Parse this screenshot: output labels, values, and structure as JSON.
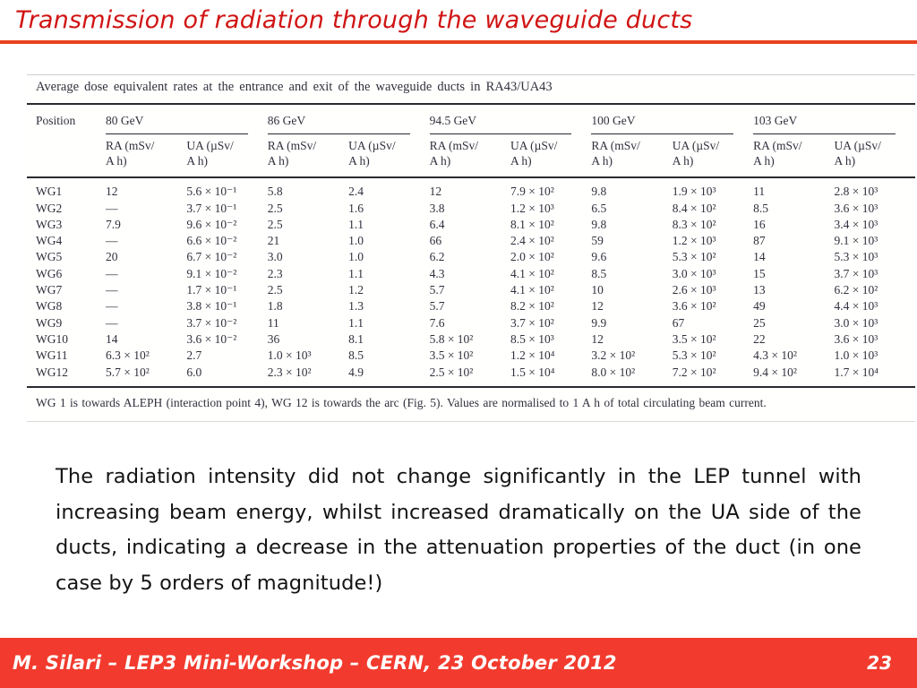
{
  "slide": {
    "title": "Transmission of radiation through the waveguide ducts",
    "body_paragraph": "The radiation intensity did not change significantly in the LEP tunnel with increasing beam energy, whilst increased dramatically on the UA side of the ducts, indicating a decrease in the attenuation properties of the duct (in one case by 5 orders of magnitude!)",
    "footer": {
      "credit": "M. Silari – LEP3 Mini-Workshop – CERN, 23 October 2012",
      "page_number": "23"
    },
    "colors": {
      "title_red": "#d11414",
      "rule_orange": "#e8421f",
      "footer_red": "#f23b2e",
      "paper_text": "#30303c"
    }
  },
  "table": {
    "caption": "Average dose equivalent rates at the entrance and exit of the waveguide ducts in RA43/UA43",
    "position_header": "Position",
    "energy_groups": [
      "80 GeV",
      "86 GeV",
      "94.5 GeV",
      "100 GeV",
      "103 GeV"
    ],
    "ra_subheader": "RA (mSv/\nA h)",
    "ua_subheader": "UA (µSv/\nA h)",
    "rows": [
      {
        "position": "WG1",
        "values": [
          "12",
          "5.6 × 10⁻¹",
          "5.8",
          "2.4",
          "12",
          "7.9 × 10²",
          "9.8",
          "1.9 × 10³",
          "11",
          "2.8 × 10³"
        ]
      },
      {
        "position": "WG2",
        "values": [
          "—",
          "3.7 × 10⁻¹",
          "2.5",
          "1.6",
          "3.8",
          "1.2 × 10³",
          "6.5",
          "8.4 × 10²",
          "8.5",
          "3.6 × 10³"
        ]
      },
      {
        "position": "WG3",
        "values": [
          "7.9",
          "9.6 × 10⁻²",
          "2.5",
          "1.1",
          "6.4",
          "8.1 × 10²",
          "9.8",
          "8.3 × 10²",
          "16",
          "3.4 × 10³"
        ]
      },
      {
        "position": "WG4",
        "values": [
          "—",
          "6.6 × 10⁻²",
          "21",
          "1.0",
          "66",
          "2.4 × 10²",
          "59",
          "1.2 × 10³",
          "87",
          "9.1 × 10³"
        ]
      },
      {
        "position": "WG5",
        "values": [
          "20",
          "6.7 × 10⁻²",
          "3.0",
          "1.0",
          "6.2",
          "2.0 × 10²",
          "9.6",
          "5.3 × 10²",
          "14",
          "5.3 × 10³"
        ]
      },
      {
        "position": "WG6",
        "values": [
          "—",
          "9.1 × 10⁻²",
          "2.3",
          "1.1",
          "4.3",
          "4.1 × 10²",
          "8.5",
          "3.0 × 10³",
          "15",
          "3.7 × 10³"
        ]
      },
      {
        "position": "WG7",
        "values": [
          "—",
          "1.7 × 10⁻¹",
          "2.5",
          "1.2",
          "5.7",
          "4.1 × 10²",
          "10",
          "2.6 × 10³",
          "13",
          "6.2 × 10²"
        ]
      },
      {
        "position": "WG8",
        "values": [
          "—",
          "3.8 × 10⁻¹",
          "1.8",
          "1.3",
          "5.7",
          "8.2 × 10²",
          "12",
          "3.6 × 10²",
          "49",
          "4.4 × 10³"
        ]
      },
      {
        "position": "WG9",
        "values": [
          "—",
          "3.7 × 10⁻²",
          "11",
          "1.1",
          "7.6",
          "3.7 × 10²",
          "9.9",
          "67",
          "25",
          "3.0 × 10³"
        ]
      },
      {
        "position": "WG10",
        "values": [
          "14",
          "3.6 × 10⁻²",
          "36",
          "8.1",
          "5.8 × 10²",
          "8.5 × 10³",
          "12",
          "3.5 × 10²",
          "22",
          "3.6 × 10³"
        ]
      },
      {
        "position": "WG11",
        "values": [
          "6.3 × 10²",
          "2.7",
          "1.0 × 10³",
          "8.5",
          "3.5 × 10²",
          "1.2 × 10⁴",
          "3.2 × 10²",
          "5.3 × 10²",
          "4.3 × 10²",
          "1.0 × 10³"
        ]
      },
      {
        "position": "WG12",
        "values": [
          "5.7 × 10²",
          "6.0",
          "2.3 × 10²",
          "4.9",
          "2.5 × 10²",
          "1.5 × 10⁴",
          "8.0 × 10²",
          "7.2 × 10²",
          "9.4 × 10²",
          "1.7 × 10⁴"
        ]
      }
    ],
    "footnote": "WG 1 is towards ALEPH (interaction point 4), WG 12 is towards the arc (Fig. 5). Values are normalised to 1 A h of total circulating beam current."
  }
}
